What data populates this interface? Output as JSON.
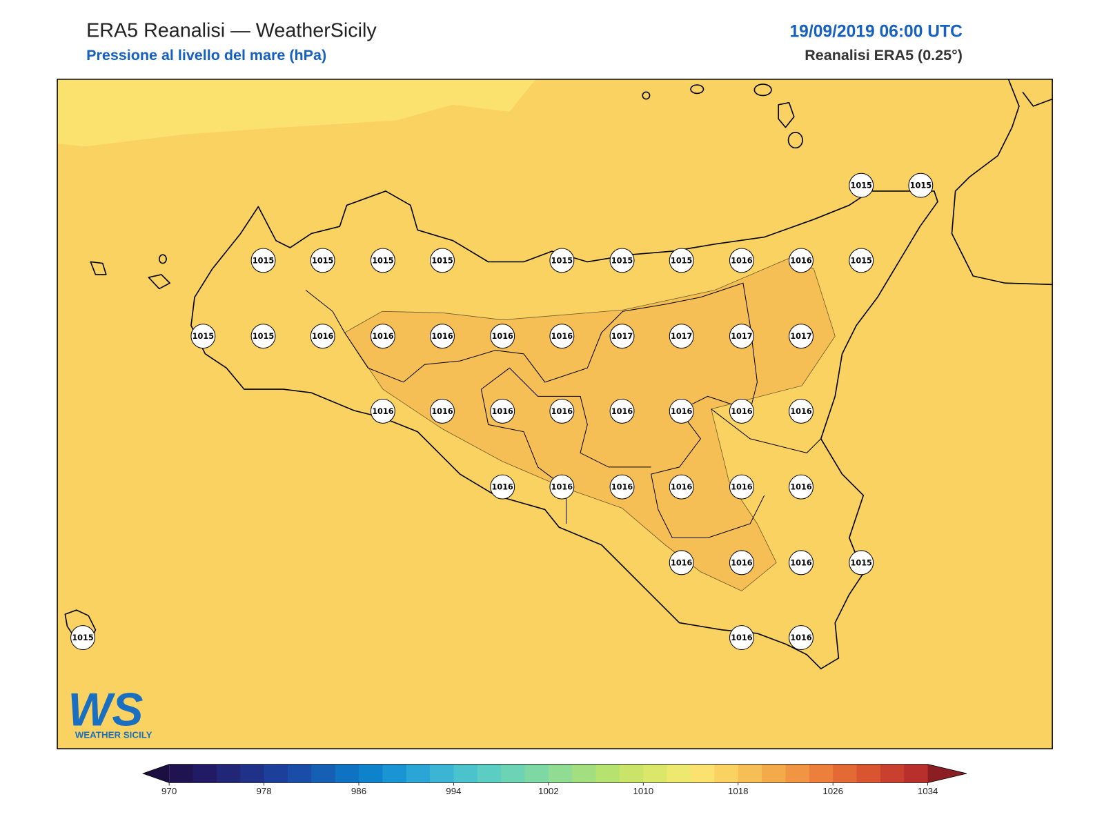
{
  "header": {
    "title": "ERA5 Reanalisi — WeatherSicily",
    "subtitle": "Pressione al livello del mare (hPa)",
    "datetime": "19/09/2019 06:00 UTC",
    "source": "Reanalisi ERA5 (0.25°)"
  },
  "logo": {
    "initials": "WS",
    "name": "WEATHER SICILY"
  },
  "chart_data": {
    "type": "map",
    "stations": {
      "values": [
        1015,
        1015,
        1015,
        1015,
        1015,
        1015,
        1015,
        1015,
        1015,
        1016,
        1016,
        1015,
        1015,
        1015,
        1016,
        1016,
        1016,
        1016,
        1016,
        1017,
        1017,
        1017,
        1017,
        1016,
        1016,
        1016,
        1016,
        1016,
        1016,
        1016,
        1016,
        1016,
        1016,
        1016,
        1016,
        1016,
        1016,
        1016,
        1016,
        1016,
        1015,
        1015,
        1016,
        1016
      ]
    },
    "colorbar": {
      "ticks": [
        970,
        978,
        986,
        994,
        1002,
        1010,
        1018,
        1026,
        1034
      ],
      "colors": [
        "#1f1450",
        "#221a64",
        "#212676",
        "#1f3288",
        "#1c3f99",
        "#1a4da8",
        "#1560b5",
        "#0f72c2",
        "#0e83cc",
        "#1895d2",
        "#2aa5d6",
        "#3bb5d3",
        "#4cc2cc",
        "#5ccdc3",
        "#6cd3b5",
        "#7ed8a4",
        "#90dc92",
        "#a3df80",
        "#b6e26f",
        "#c9e468",
        "#dbe76b",
        "#ede96e",
        "#fbe26f",
        "#f9d262",
        "#f6bf55",
        "#f2aa4b",
        "#ef9543",
        "#eb7f3b",
        "#e46a35",
        "#d95531",
        "#c9402e",
        "#b82f2c"
      ],
      "extend_colors": [
        "#1a0f40",
        "#8b1e22"
      ]
    }
  }
}
